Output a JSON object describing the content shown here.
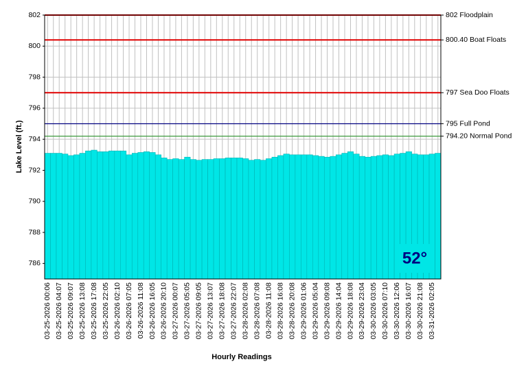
{
  "chart_data": {
    "type": "area",
    "ylabel": "Lake Level (ft.)",
    "xlabel": "Hourly Readings",
    "annotation": "52°",
    "color": "#00e6e6",
    "grid": true,
    "ylim": [
      785,
      802
    ],
    "yticks": [
      786,
      788,
      790,
      792,
      794,
      796,
      798,
      800,
      802
    ],
    "reference_lines": [
      {
        "value": 802,
        "label": "802 Floodplain",
        "color": "#e00000"
      },
      {
        "value": 800.4,
        "label": "800.40 Boat Floats",
        "color": "#e00000"
      },
      {
        "value": 797,
        "label": "797 Sea Doo Floats",
        "color": "#e00000"
      },
      {
        "value": 795,
        "label": "795 Full Pond",
        "color": "#000080"
      },
      {
        "value": 794.2,
        "label": "794.20 Normal Pond",
        "color": "#3c9a3c"
      }
    ],
    "categories": [
      "03-25-2026 00:06",
      null,
      "03-25-2026 04:07",
      null,
      "03-25-2026 09:07",
      null,
      "03-25-2026 13:08",
      null,
      "03-25-2026 17:08",
      null,
      "03-25-2026 22:05",
      null,
      "03-26-2026 02:10",
      null,
      "03-26-2026 07:05",
      null,
      "03-26-2026 11:08",
      null,
      "03-26-2026 16:05",
      null,
      "03-26-2026 20:10",
      null,
      "03-27-2026 00:07",
      null,
      "03-27-2026 05:05",
      null,
      "03-27-2026 09:05",
      null,
      "03-27-2026 13:07",
      null,
      "03-27-2026 18:08",
      null,
      "03-27-2026 22:07",
      null,
      "03-28-2026 02:08",
      null,
      "03-28-2026 07:08",
      null,
      "03-28-2026 11:08",
      null,
      "03-28-2026 16:08",
      null,
      "03-28-2026 20:08",
      null,
      "03-29-2026 01:06",
      null,
      "03-29-2026 05:04",
      null,
      "03-29-2026 09:08",
      null,
      "03-29-2026 14:04",
      null,
      "03-29-2026 18:08",
      null,
      "03-29-2026 23:04",
      null,
      "03-30-2026 03:05",
      null,
      "03-30-2026 07:10",
      null,
      "03-30-2026 12:06",
      null,
      "03-30-2026 16:07",
      null,
      "03-30-2026 21:08",
      null,
      "03-31-2026 02:05",
      null
    ],
    "values": [
      793.1,
      793.1,
      793.1,
      793.05,
      792.95,
      793.0,
      793.1,
      793.25,
      793.3,
      793.2,
      793.2,
      793.25,
      793.25,
      793.25,
      793.0,
      793.1,
      793.15,
      793.2,
      793.15,
      793.0,
      792.8,
      792.7,
      792.75,
      792.7,
      792.85,
      792.7,
      792.65,
      792.7,
      792.7,
      792.75,
      792.75,
      792.8,
      792.8,
      792.8,
      792.75,
      792.65,
      792.7,
      792.65,
      792.75,
      792.85,
      792.95,
      793.05,
      793.0,
      793.0,
      793.0,
      793.0,
      792.95,
      792.9,
      792.85,
      792.9,
      793.0,
      793.1,
      793.2,
      793.05,
      792.9,
      792.85,
      792.9,
      792.95,
      793.0,
      792.95,
      793.05,
      793.1,
      793.2,
      793.05,
      793.0,
      793.0,
      793.05,
      793.1
    ]
  }
}
